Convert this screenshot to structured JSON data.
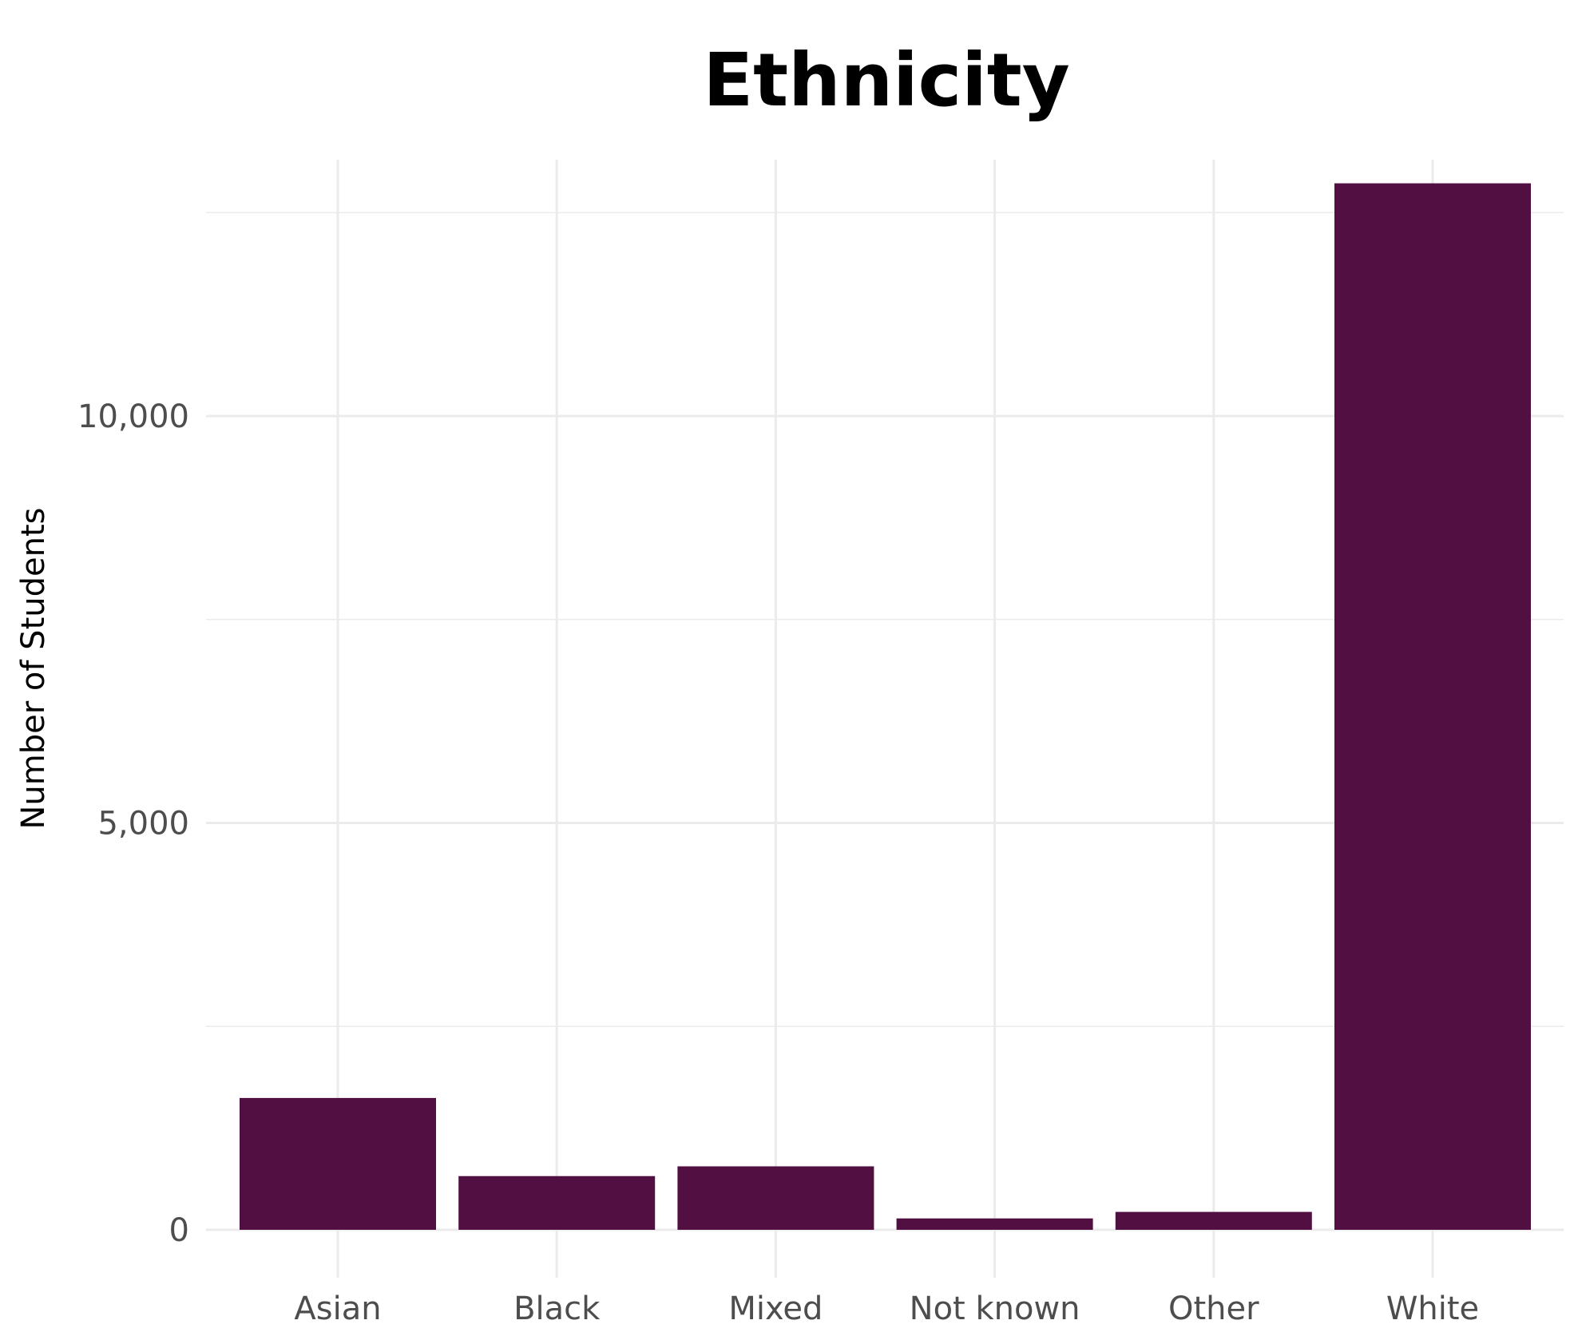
{
  "chart_data": {
    "type": "bar",
    "title": "Ethnicity",
    "xlabel": "",
    "ylabel": "Number of Students",
    "categories": [
      "Asian",
      "Black",
      "Mixed",
      "Not known",
      "Other",
      "White"
    ],
    "values": [
      1620,
      660,
      780,
      140,
      220,
      12860
    ],
    "ylim": [
      0,
      13150
    ],
    "yticks": [
      {
        "value": 0,
        "label": "0"
      },
      {
        "value": 5000,
        "label": "5,000"
      },
      {
        "value": 10000,
        "label": "10,000"
      }
    ],
    "yminor": [
      2500,
      7500,
      12500
    ],
    "grid": true,
    "legend": "none",
    "colors": {
      "bar": "#520f41",
      "grid": "#ebebeb",
      "tick_text": "#4d4d4d",
      "title_text": "#000000"
    }
  }
}
